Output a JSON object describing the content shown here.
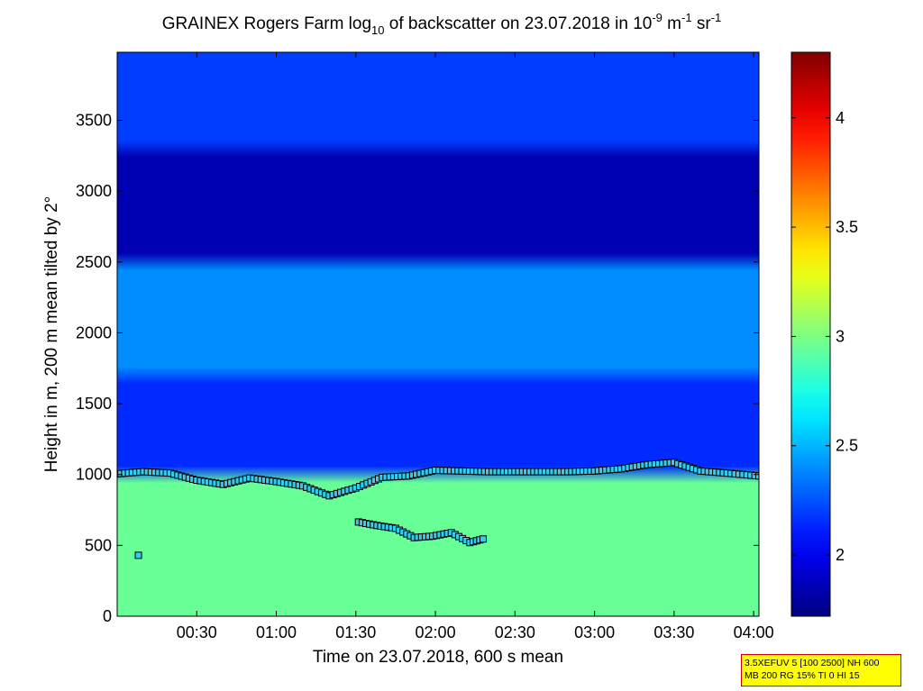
{
  "chart_data": {
    "type": "heatmap",
    "title": {
      "prefix": "GRAINEX Rogers Farm log",
      "sub": "10",
      "mid": " of backscatter on 23.07.2018 in 10",
      "sup1": "-9",
      "mid2": " m",
      "sup2": "-1",
      "mid3": " sr",
      "sup3": "-1"
    },
    "xlabel": "Time on 23.07.2018, 600 s mean",
    "ylabel": "Height in m, 200 m mean tilted by 2°",
    "x_ticks": [
      "00:30",
      "01:00",
      "01:30",
      "02:00",
      "02:30",
      "03:00",
      "03:30",
      "04:00"
    ],
    "x_tick_minutes": [
      30,
      60,
      90,
      120,
      150,
      180,
      210,
      240
    ],
    "xlim_minutes": [
      0,
      242
    ],
    "y_ticks": [
      0,
      500,
      1000,
      1500,
      2000,
      2500,
      3000,
      3500
    ],
    "ylim": [
      0,
      3980
    ],
    "colorbar": {
      "ticks": [
        "2",
        "2.5",
        "3",
        "3.5",
        "4"
      ],
      "tick_values": [
        2,
        2.5,
        3,
        3.5,
        4
      ],
      "range": [
        1.72,
        4.3
      ],
      "colormap": "jet"
    },
    "layers": [
      {
        "from_height": 0,
        "to_height": 1000,
        "log10_backscatter": 2.95
      },
      {
        "from_height": 1000,
        "to_height": 1700,
        "log10_backscatter": 2.15
      },
      {
        "from_height": 1700,
        "to_height": 2500,
        "log10_backscatter": 2.4
      },
      {
        "from_height": 2500,
        "to_height": 3300,
        "log10_backscatter": 1.85
      },
      {
        "from_height": 3300,
        "to_height": 3980,
        "log10_backscatter": 2.2
      }
    ],
    "series": [
      {
        "marker": "square",
        "x_minutes": [
          0,
          10,
          20,
          30,
          40,
          50,
          60,
          70,
          80,
          90,
          100,
          110,
          120,
          130,
          140,
          150,
          160,
          170,
          180,
          190,
          200,
          210,
          220,
          230,
          242
        ],
        "height_m": [
          1005,
          1020,
          1010,
          960,
          930,
          975,
          950,
          920,
          850,
          905,
          980,
          990,
          1030,
          1025,
          1020,
          1020,
          1020,
          1020,
          1025,
          1040,
          1070,
          1085,
          1025,
          1010,
          990
        ]
      },
      {
        "marker": "square",
        "x_minutes": [
          91,
          98,
          105,
          112,
          119,
          126,
          133,
          138
        ],
        "height_m": [
          665,
          640,
          620,
          555,
          565,
          590,
          520,
          545
        ]
      },
      {
        "marker": "square",
        "x_minutes": [
          8
        ],
        "height_m": [
          430
        ]
      }
    ]
  },
  "info_box": {
    "line1": "3.5XEFUV 5 [100 2500] NH 600",
    "line2": "MB 200 RG 15% TI 0 HI 15"
  }
}
